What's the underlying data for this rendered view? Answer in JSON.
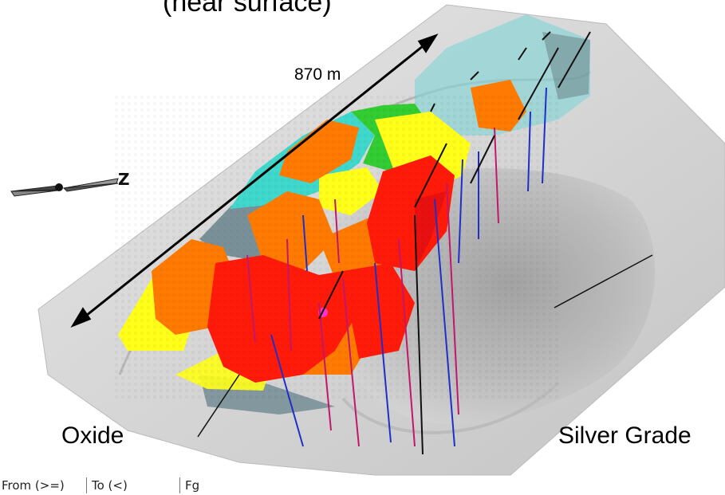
{
  "labels": {
    "title_partial": "(near surface)",
    "dimension": "870 m",
    "oxide": "Oxide",
    "silver_grade": "Silver Grade"
  },
  "north_arrow": {
    "letter": "Z"
  },
  "legend_header": {
    "columns": [
      "From (>=)",
      "To (<)",
      "Fg"
    ]
  },
  "colors": {
    "surface": "#d9d9d9",
    "red": "#ff1a0a",
    "orange": "#ff7a00",
    "yellow": "#ffff1a",
    "green": "#33cc33",
    "cyan": "#40d8cc",
    "slate": "#7a9098",
    "drill_blue": "#1f2fc8",
    "drill_magenta": "#c0186a",
    "drill_black": "#111111"
  },
  "icons": [
    "north-arrow-icon",
    "dimension-arrow-icon"
  ]
}
